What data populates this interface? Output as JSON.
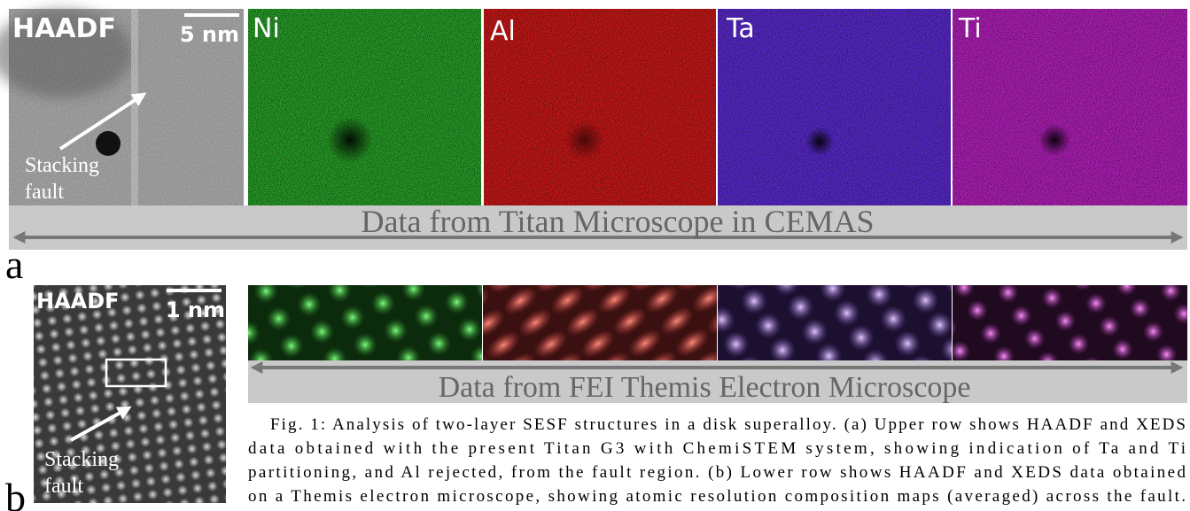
{
  "panel_a": {
    "label": "a",
    "haadf": "HAADF",
    "scale_bar": "5 nm",
    "maps": [
      "Ni",
      "Al",
      "Ta",
      "Ti"
    ],
    "annotation": [
      "Stacking",
      "fault"
    ],
    "banner": "Data from Titan Microscope in CEMAS"
  },
  "panel_b": {
    "label": "b",
    "haadf": "HAADF",
    "scale_bar": "1 nm",
    "annotation": [
      "Stacking",
      "fault"
    ],
    "banner": "Data from FEI Themis Electron Microscope"
  },
  "caption": [
    "Fig. 1:  Analysis of two-layer SESF structures in a disk superalloy. (a) Upper row shows HAADF and XEDS",
    "data obtained with the present Titan G3 with ChemiSTEM system, showing indication of Ta and Ti",
    "partitioning, and Al rejected, from the fault region. (b) Lower row shows HAADF and XEDS data obtained",
    "on a Themis electron microscope, showing atomic resolution composition maps (averaged) across the fault."
  ]
}
